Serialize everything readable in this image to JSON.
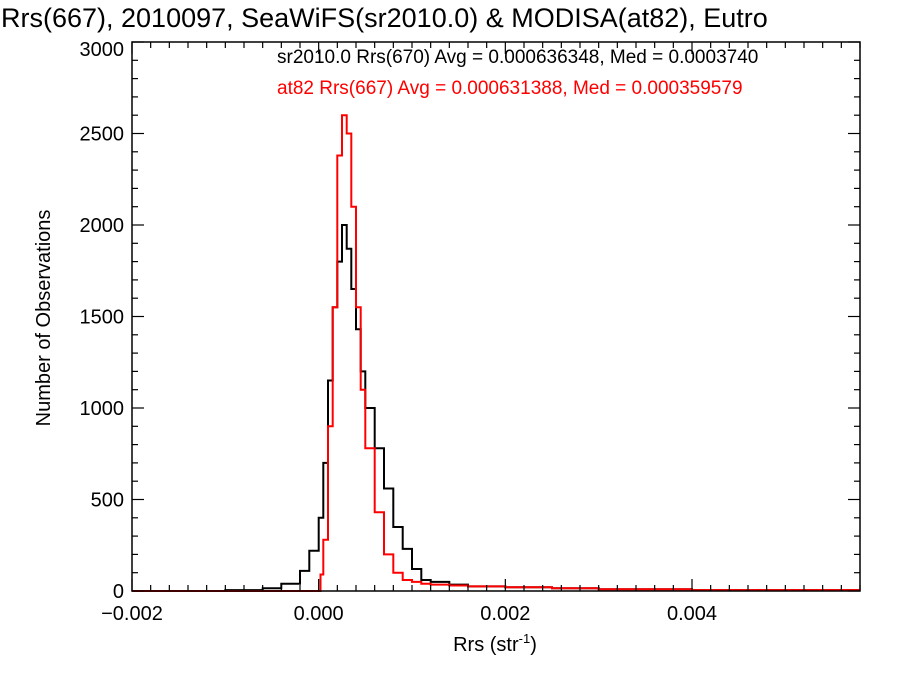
{
  "chart_data": {
    "type": "line",
    "title": "Rrs(667), 2010097, SeaWiFS(sr2010.0) & MODISA(at82), Eutro",
    "xlabel": "Rrs (str",
    "xlabel_sup": "-1",
    "xlabel_end": ")",
    "ylabel": "Number of Observations",
    "xlim": [
      -0.002,
      0.0058
    ],
    "ylim": [
      0,
      3000
    ],
    "xticks": [
      {
        "value": -0.002,
        "label": "−0.002"
      },
      {
        "value": 0.0,
        "label": "0.000"
      },
      {
        "value": 0.002,
        "label": "0.002"
      },
      {
        "value": 0.004,
        "label": "0.004"
      }
    ],
    "yticks": [
      {
        "value": 0,
        "label": "0"
      },
      {
        "value": 500,
        "label": "500"
      },
      {
        "value": 1000,
        "label": "1000"
      },
      {
        "value": 1500,
        "label": "1500"
      },
      {
        "value": 2000,
        "label": "2000"
      },
      {
        "value": 2500,
        "label": "2500"
      },
      {
        "value": 3000,
        "label": "3000"
      }
    ],
    "legend": [
      {
        "text": "sr2010.0 Rrs(670) Avg = 0.000636348, Med = 0.0003740",
        "color": "#000000"
      },
      {
        "text": "at82 Rrs(667) Avg = 0.000631388, Med = 0.000359579",
        "color": "#ff0000"
      }
    ],
    "series": [
      {
        "color": "#000000",
        "x": [
          -0.002,
          -0.001,
          -0.0006,
          -0.0004,
          -0.0002,
          -0.0001,
          0.0,
          5e-05,
          0.0001,
          0.00015,
          0.0002,
          0.00025,
          0.0003,
          0.00035,
          0.0004,
          0.00045,
          0.0005,
          0.0006,
          0.0007,
          0.0008,
          0.0009,
          0.001,
          0.0011,
          0.0012,
          0.0014,
          0.0016,
          0.002,
          0.0025,
          0.003,
          0.004,
          0.005,
          0.0058
        ],
        "y": [
          0,
          5,
          15,
          40,
          110,
          220,
          400,
          700,
          1150,
          1550,
          1800,
          2000,
          1870,
          1650,
          1430,
          1200,
          1000,
          780,
          560,
          350,
          230,
          120,
          60,
          50,
          35,
          25,
          20,
          15,
          10,
          5,
          5,
          5
        ]
      },
      {
        "color": "#ff0000",
        "x": [
          -0.002,
          0.0,
          2e-05,
          5e-05,
          0.0001,
          0.00015,
          0.0002,
          0.00025,
          0.0003,
          0.00035,
          0.0004,
          0.00045,
          0.0005,
          0.0006,
          0.0007,
          0.0008,
          0.0009,
          0.001,
          0.0011,
          0.0012,
          0.0014,
          0.0016,
          0.002,
          0.0025,
          0.003,
          0.004,
          0.005,
          0.0058
        ],
        "y": [
          0,
          0,
          90,
          280,
          900,
          1550,
          2380,
          2600,
          2500,
          2100,
          1550,
          1100,
          780,
          430,
          200,
          100,
          60,
          50,
          40,
          35,
          30,
          25,
          20,
          15,
          10,
          5,
          5,
          5
        ]
      }
    ]
  }
}
